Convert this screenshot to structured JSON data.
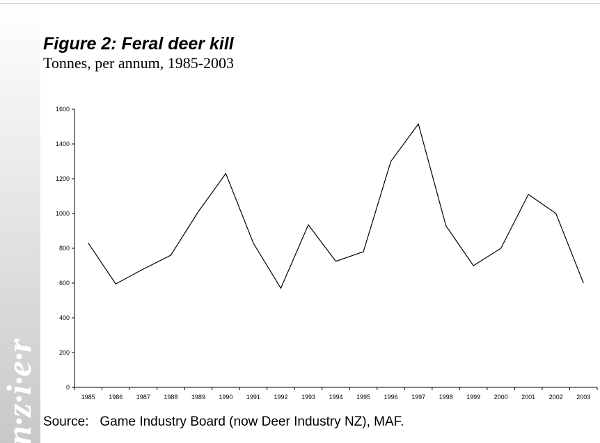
{
  "watermark": "n·z·i·e·r",
  "source": "Source:   Game Industry Board (now Deer Industry NZ), MAF.",
  "chart_data": {
    "type": "line",
    "title": "Figure 2: Feral deer kill",
    "subtitle": "Tonnes, per annum, 1985-2003",
    "categories": [
      "1985",
      "1986",
      "1987",
      "1988",
      "1989",
      "1990",
      "1991",
      "1992",
      "1993",
      "1994",
      "1995",
      "1996",
      "1997",
      "1998",
      "1999",
      "2000",
      "2001",
      "2002",
      "2003"
    ],
    "values": [
      830,
      595,
      680,
      760,
      1010,
      1230,
      830,
      570,
      935,
      725,
      780,
      1300,
      1515,
      930,
      700,
      800,
      1110,
      1000,
      600
    ],
    "color": "#000000",
    "ylim": [
      0,
      1600
    ],
    "yticks": [
      0,
      200,
      400,
      600,
      800,
      1000,
      1200,
      1400,
      1600
    ],
    "grid": false
  }
}
